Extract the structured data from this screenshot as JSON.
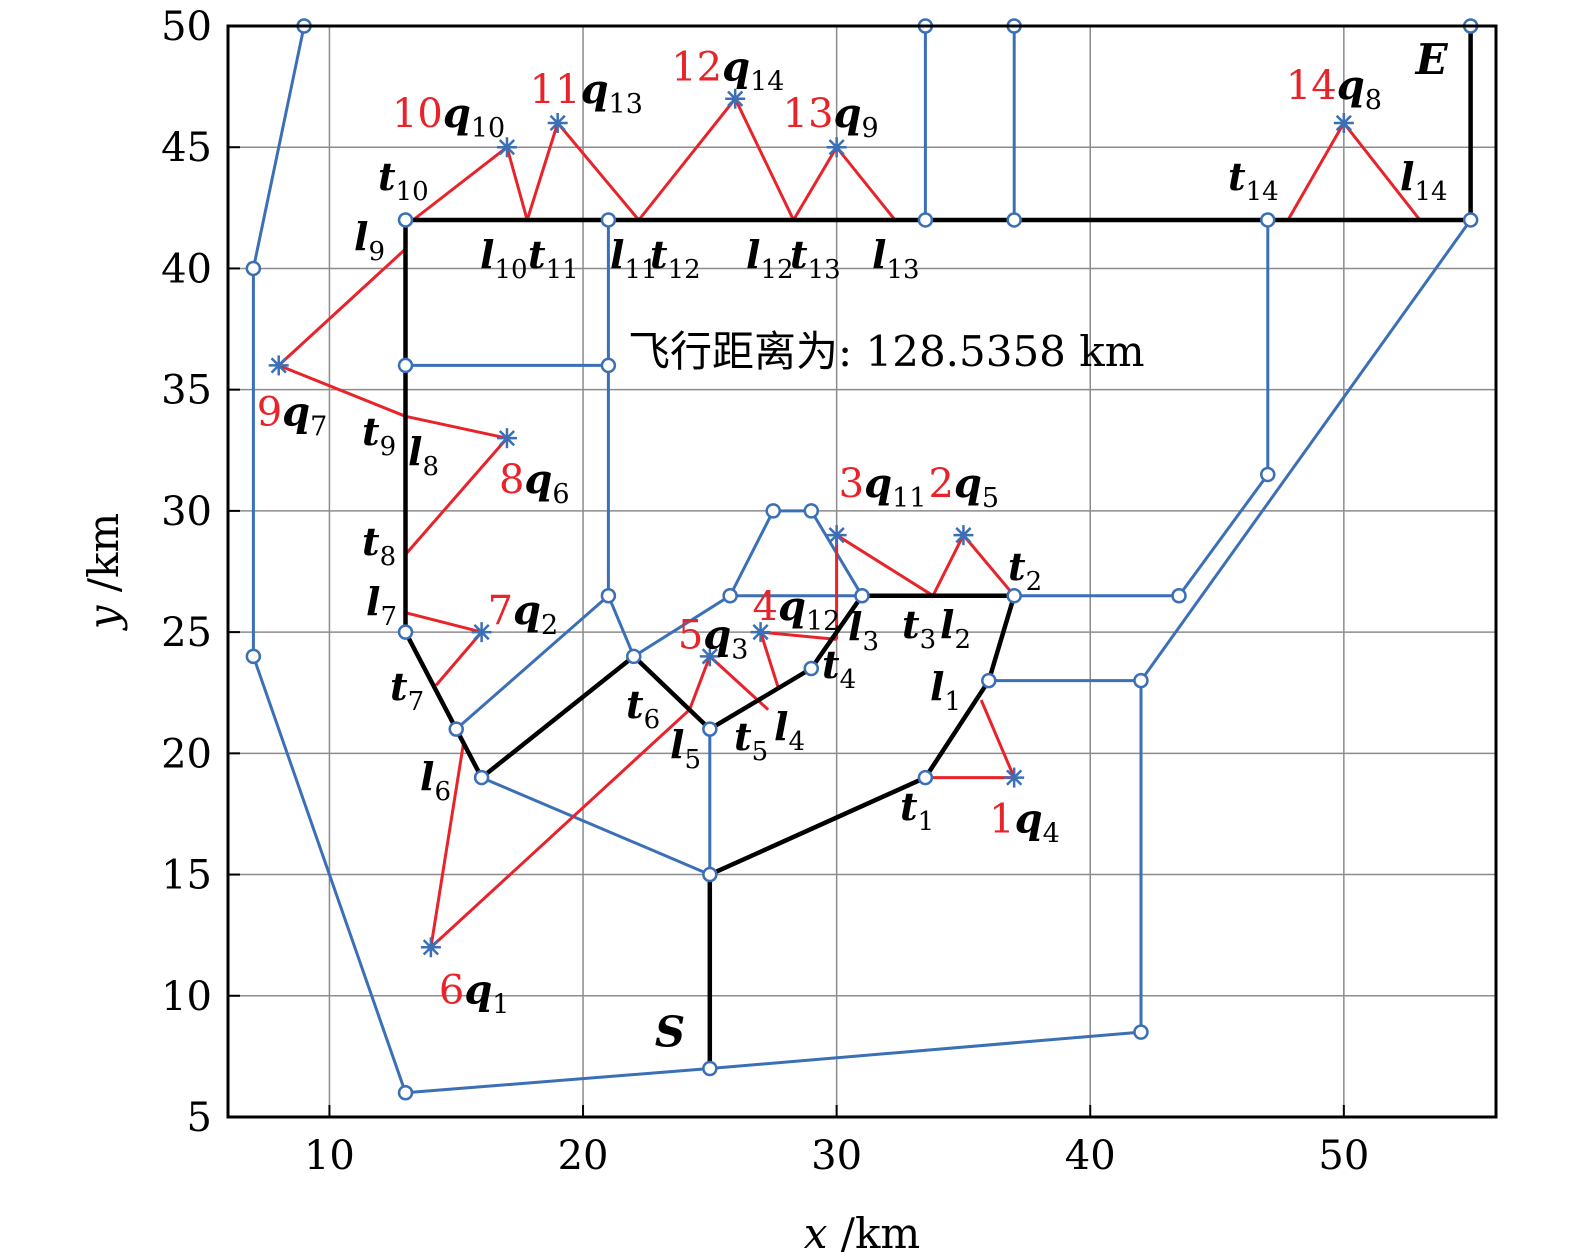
{
  "chart_data": {
    "type": "line",
    "title": "",
    "xlabel": {
      "var": "x",
      "unit": " /km"
    },
    "ylabel": {
      "var": "y",
      "unit": " /km"
    },
    "xlim": [
      6,
      56
    ],
    "ylim": [
      5,
      50
    ],
    "xticks": [
      10,
      20,
      30,
      40,
      50
    ],
    "yticks": [
      5,
      10,
      15,
      20,
      25,
      30,
      35,
      40,
      45,
      50
    ],
    "grid": true,
    "annotation": "飞行距离为: 128.5358 km",
    "colors": {
      "network": "#3b6fb6",
      "route": "#000000",
      "detour": "#e8232a",
      "target_number": "#e8232a"
    },
    "network_nodes": [
      [
        9,
        50
      ],
      [
        33.5,
        50
      ],
      [
        37,
        50
      ],
      [
        55,
        50
      ],
      [
        7,
        40
      ],
      [
        7,
        24
      ],
      [
        13,
        6
      ],
      [
        25,
        7
      ],
      [
        42,
        8.5
      ],
      [
        55,
        42
      ],
      [
        13,
        42
      ],
      [
        21,
        42
      ],
      [
        33.5,
        42
      ],
      [
        37,
        42
      ],
      [
        47,
        42
      ],
      [
        13,
        36
      ],
      [
        21,
        36
      ],
      [
        21,
        26.5
      ],
      [
        27.5,
        30
      ],
      [
        29,
        30
      ],
      [
        31,
        26.5
      ],
      [
        25.8,
        26.5
      ],
      [
        37,
        26.5
      ],
      [
        43.5,
        26.5
      ],
      [
        47,
        31.5
      ],
      [
        22,
        24
      ],
      [
        25,
        21
      ],
      [
        29,
        23.5
      ],
      [
        36,
        23
      ],
      [
        42,
        23
      ],
      [
        15,
        21
      ],
      [
        16,
        19
      ],
      [
        25,
        15
      ],
      [
        33.5,
        19
      ],
      [
        13,
        25
      ]
    ],
    "network_edges": [
      [
        [
          9,
          50
        ],
        [
          55,
          50
        ]
      ],
      [
        [
          9,
          50
        ],
        [
          7,
          40
        ]
      ],
      [
        [
          7,
          40
        ],
        [
          7,
          24
        ]
      ],
      [
        [
          7,
          24
        ],
        [
          13,
          6
        ]
      ],
      [
        [
          13,
          6
        ],
        [
          25,
          7
        ]
      ],
      [
        [
          25,
          7
        ],
        [
          42,
          8.5
        ]
      ],
      [
        [
          42,
          8.5
        ],
        [
          42,
          23
        ]
      ],
      [
        [
          42,
          23
        ],
        [
          36,
          23
        ]
      ],
      [
        [
          55,
          50
        ],
        [
          55,
          42
        ]
      ],
      [
        [
          33.5,
          50
        ],
        [
          33.5,
          42
        ]
      ],
      [
        [
          37,
          50
        ],
        [
          37,
          42
        ]
      ],
      [
        [
          13,
          42
        ],
        [
          55,
          42
        ]
      ],
      [
        [
          47,
          42
        ],
        [
          47,
          31.5
        ]
      ],
      [
        [
          47,
          31.5
        ],
        [
          43.5,
          26.5
        ]
      ],
      [
        [
          43.5,
          26.5
        ],
        [
          37,
          26.5
        ]
      ],
      [
        [
          55,
          42
        ],
        [
          42,
          23
        ]
      ],
      [
        [
          21,
          42
        ],
        [
          21,
          26.5
        ]
      ],
      [
        [
          21,
          26.5
        ],
        [
          22,
          24
        ]
      ],
      [
        [
          13,
          36
        ],
        [
          21,
          36
        ]
      ],
      [
        [
          13,
          42
        ],
        [
          13,
          25
        ]
      ],
      [
        [
          15,
          21
        ],
        [
          21,
          26.5
        ]
      ],
      [
        [
          22,
          24
        ],
        [
          25.8,
          26.5
        ]
      ],
      [
        [
          25.8,
          26.5
        ],
        [
          27.5,
          30
        ]
      ],
      [
        [
          27.5,
          30
        ],
        [
          29,
          30
        ]
      ],
      [
        [
          29,
          30
        ],
        [
          31,
          26.5
        ]
      ],
      [
        [
          25.8,
          26.5
        ],
        [
          37,
          26.5
        ]
      ],
      [
        [
          16,
          19
        ],
        [
          25,
          15
        ]
      ],
      [
        [
          25,
          15
        ],
        [
          25,
          21
        ]
      ]
    ],
    "route": [
      [
        25,
        7
      ],
      [
        25,
        15
      ],
      [
        33.5,
        19
      ],
      [
        36,
        23
      ],
      [
        37,
        26.5
      ],
      [
        31,
        26.5
      ],
      [
        29,
        23.5
      ],
      [
        25,
        21
      ],
      [
        22,
        24
      ],
      [
        16,
        19
      ],
      [
        13,
        25
      ],
      [
        13,
        42
      ],
      [
        55,
        42
      ],
      [
        55,
        50
      ]
    ],
    "detours": [
      [
        [
          33.5,
          19
        ],
        [
          37,
          19
        ],
        [
          35.7,
          22.2
        ]
      ],
      [
        [
          37,
          26.5
        ],
        [
          35,
          29
        ],
        [
          33.8,
          26.5
        ]
      ],
      [
        [
          33.8,
          26.5
        ],
        [
          30,
          29
        ],
        [
          30,
          24.7
        ]
      ],
      [
        [
          30,
          24.7
        ],
        [
          27,
          25
        ],
        [
          27.7,
          22.7
        ]
      ],
      [
        [
          27.3,
          21.8
        ],
        [
          25,
          24
        ],
        [
          24.2,
          21.8
        ]
      ],
      [
        [
          24.2,
          21.8
        ],
        [
          14,
          12
        ],
        [
          15.3,
          20.5
        ]
      ],
      [
        [
          14.2,
          22.8
        ],
        [
          16,
          25
        ],
        [
          13,
          25.8
        ]
      ],
      [
        [
          13,
          28.2
        ],
        [
          17,
          33
        ],
        [
          13,
          33.9
        ]
      ],
      [
        [
          13,
          33.9
        ],
        [
          8,
          36
        ],
        [
          13,
          40.8
        ]
      ],
      [
        [
          13.3,
          42
        ],
        [
          17,
          45
        ],
        [
          17.8,
          42
        ]
      ],
      [
        [
          17.8,
          42
        ],
        [
          19,
          46
        ],
        [
          22.2,
          42
        ]
      ],
      [
        [
          22.2,
          42
        ],
        [
          26,
          47
        ],
        [
          28.3,
          42
        ]
      ],
      [
        [
          28.3,
          42
        ],
        [
          30,
          45
        ],
        [
          32.3,
          42
        ]
      ],
      [
        [
          47.8,
          42
        ],
        [
          50,
          46
        ],
        [
          53,
          42
        ]
      ]
    ],
    "targets": [
      {
        "x": 37,
        "y": 19,
        "num": "1",
        "sym": "q",
        "sub": "4"
      },
      {
        "x": 35,
        "y": 29,
        "num": "2",
        "sym": "q",
        "sub": "5"
      },
      {
        "x": 30,
        "y": 29,
        "num": "3",
        "sym": "q",
        "sub": "11"
      },
      {
        "x": 27,
        "y": 25,
        "num": "4",
        "sym": "q",
        "sub": "12"
      },
      {
        "x": 25,
        "y": 24,
        "num": "5",
        "sym": "q",
        "sub": "3"
      },
      {
        "x": 14,
        "y": 12,
        "num": "6",
        "sym": "q",
        "sub": "1"
      },
      {
        "x": 16,
        "y": 25,
        "num": "7",
        "sym": "q",
        "sub": "2"
      },
      {
        "x": 17,
        "y": 33,
        "num": "8",
        "sym": "q",
        "sub": "6"
      },
      {
        "x": 8,
        "y": 36,
        "num": "9",
        "sym": "q",
        "sub": "7"
      },
      {
        "x": 17,
        "y": 45,
        "num": "10",
        "sym": "q",
        "sub": "10"
      },
      {
        "x": 19,
        "y": 46,
        "num": "11",
        "sym": "q",
        "sub": "13"
      },
      {
        "x": 26,
        "y": 47,
        "num": "12",
        "sym": "q",
        "sub": "14"
      },
      {
        "x": 30,
        "y": 45,
        "num": "13",
        "sym": "q",
        "sub": "9"
      },
      {
        "x": 50,
        "y": 46,
        "num": "14",
        "sym": "q",
        "sub": "8"
      }
    ],
    "point_labels": [
      {
        "sym": "t",
        "sub": "1"
      },
      {
        "sym": "l",
        "sub": "1"
      },
      {
        "sym": "t",
        "sub": "2"
      },
      {
        "sym": "l",
        "sub": "2"
      },
      {
        "sym": "t",
        "sub": "3"
      },
      {
        "sym": "l",
        "sub": "3"
      },
      {
        "sym": "t",
        "sub": "4"
      },
      {
        "sym": "l",
        "sub": "4"
      },
      {
        "sym": "t",
        "sub": "5"
      },
      {
        "sym": "l",
        "sub": "5"
      },
      {
        "sym": "t",
        "sub": "6"
      },
      {
        "sym": "l",
        "sub": "6"
      },
      {
        "sym": "t",
        "sub": "7"
      },
      {
        "sym": "l",
        "sub": "7"
      },
      {
        "sym": "t",
        "sub": "8"
      },
      {
        "sym": "l",
        "sub": "8"
      },
      {
        "sym": "t",
        "sub": "9"
      },
      {
        "sym": "l",
        "sub": "9"
      },
      {
        "sym": "t",
        "sub": "10"
      },
      {
        "sym": "l",
        "sub": "10"
      },
      {
        "sym": "t",
        "sub": "11"
      },
      {
        "sym": "l",
        "sub": "11"
      },
      {
        "sym": "t",
        "sub": "12"
      },
      {
        "sym": "l",
        "sub": "12"
      },
      {
        "sym": "t",
        "sub": "13"
      },
      {
        "sym": "l",
        "sub": "13"
      },
      {
        "sym": "t",
        "sub": "14"
      },
      {
        "sym": "l",
        "sub": "14"
      }
    ],
    "start_label": "S",
    "end_label": "E"
  }
}
